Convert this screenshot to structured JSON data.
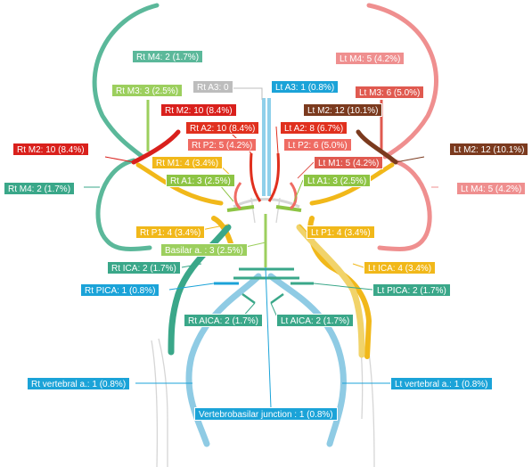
{
  "colors": {
    "m4_right": "#5bb89a",
    "m4_left": "#ef8f8f",
    "m3_right": "#9ccf5e",
    "m3_left": "#e05a50",
    "m2_right": "#d9201c",
    "m2_left": "#7b3a1e",
    "a3_right": "#bdbdbd",
    "a3_left": "#1ba3d8",
    "a2_right": "#e0301e",
    "a2_left": "#e0301e",
    "p2": "#ef6b63",
    "m1_right": "#f1b81a",
    "m1_left": "#e05a50",
    "a1": "#8dc444",
    "p1": "#f1b81a",
    "basilar": "#9ccf5e",
    "ica_right": "#3aa789",
    "ica_left": "#f1b81a",
    "pica_right": "#1ba3d8",
    "pica_left": "#3aa789",
    "aica": "#3aa789",
    "vertebral": "#1ba3d8",
    "vb_junction": "#1ba3d8",
    "outline": "#cfcfcf"
  },
  "labels": [
    {
      "id": "rt-m4-top",
      "text": "Rt M4: 2 (1.7%)",
      "color": "m4_right"
    },
    {
      "id": "lt-m4-top",
      "text": "Lt M4: 5 (4.2%)",
      "color": "m4_left"
    },
    {
      "id": "rt-m3",
      "text": "Rt M3: 3 (2.5%)",
      "color": "m3_right"
    },
    {
      "id": "rt-a3",
      "text": "Rt A3: 0",
      "color": "a3_right"
    },
    {
      "id": "lt-a3",
      "text": "Lt A3: 1 (0.8%)",
      "color": "a3_left"
    },
    {
      "id": "lt-m3",
      "text": "Lt M3: 6 (5.0%)",
      "color": "m3_left"
    },
    {
      "id": "rt-m2-inner",
      "text": "Rt M2: 10 (8.4%)",
      "color": "m2_right"
    },
    {
      "id": "lt-m2-inner",
      "text": "Lt M2: 12 (10.1%)",
      "color": "m2_left"
    },
    {
      "id": "rt-a2",
      "text": "Rt A2: 10 (8.4%)",
      "color": "a2_right"
    },
    {
      "id": "lt-a2",
      "text": "Lt A2: 8 (6.7%)",
      "color": "a2_left"
    },
    {
      "id": "rt-p2",
      "text": "Rt P2: 5 (4.2%)",
      "color": "p2"
    },
    {
      "id": "lt-p2",
      "text": "Lt P2: 6 (5.0%)",
      "color": "p2"
    },
    {
      "id": "rt-m2-outer",
      "text": "Rt M2: 10 (8.4%)",
      "color": "m2_right"
    },
    {
      "id": "lt-m2-outer",
      "text": "Lt M2: 12 (10.1%)",
      "color": "m2_left"
    },
    {
      "id": "rt-m1",
      "text": "Rt M1: 4 (3.4%)",
      "color": "m1_right"
    },
    {
      "id": "lt-m1",
      "text": "Lt M1: 5 (4.2%)",
      "color": "m1_left"
    },
    {
      "id": "rt-a1",
      "text": "Rt A1: 3 (2.5%)",
      "color": "a1"
    },
    {
      "id": "lt-a1",
      "text": "Lt A1: 3 (2.5%)",
      "color": "a1"
    },
    {
      "id": "rt-m4-side",
      "text": "Rt M4: 2 (1.7%)",
      "color": "ica_right"
    },
    {
      "id": "lt-m4-side",
      "text": "Lt M4: 5 (4.2%)",
      "color": "m4_left"
    },
    {
      "id": "rt-p1",
      "text": "Rt P1: 4 (3.4%)",
      "color": "p1"
    },
    {
      "id": "lt-p1",
      "text": "Lt P1: 4 (3.4%)",
      "color": "p1"
    },
    {
      "id": "basilar",
      "text": "Basilar a. : 3 (2.5%)",
      "color": "basilar"
    },
    {
      "id": "rt-ica",
      "text": "Rt ICA: 2 (1.7%)",
      "color": "ica_right"
    },
    {
      "id": "lt-ica",
      "text": "Lt ICA: 4 (3.4%)",
      "color": "ica_left"
    },
    {
      "id": "rt-pica",
      "text": "Rt PICA: 1 (0.8%)",
      "color": "pica_right"
    },
    {
      "id": "lt-pica",
      "text": "Lt PICA: 2 (1.7%)",
      "color": "pica_left"
    },
    {
      "id": "rt-aica",
      "text": "Rt AICA: 2 (1.7%)",
      "color": "aica"
    },
    {
      "id": "lt-aica",
      "text": "Lt AICA: 2 (1.7%)",
      "color": "aica"
    },
    {
      "id": "rt-vertebral",
      "text": "Rt vertebral a.: 1 (0.8%)",
      "color": "vertebral"
    },
    {
      "id": "lt-vertebral",
      "text": "Lt vertebral a.: 1 (0.8%)",
      "color": "vertebral"
    },
    {
      "id": "vb-junction",
      "text": "Vertebrobasilar junction : 1 (0.8%)",
      "color": "vb_junction"
    }
  ]
}
